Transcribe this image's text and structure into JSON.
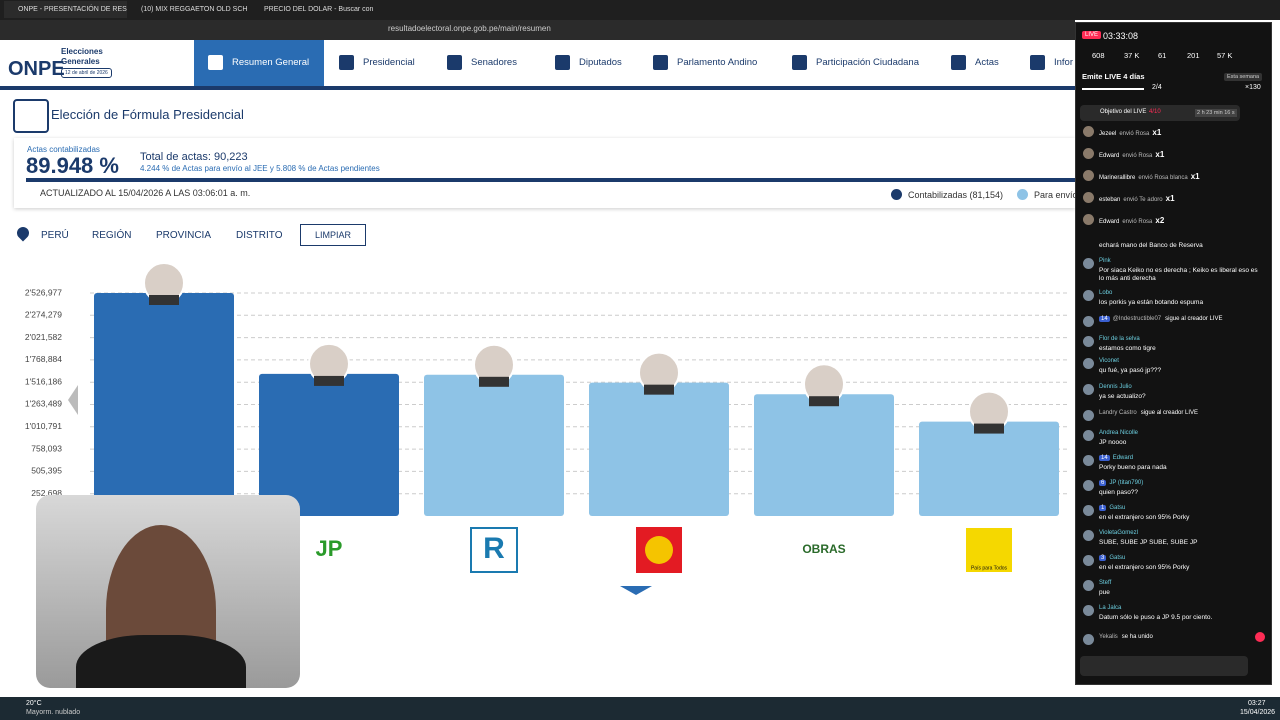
{
  "browser": {
    "tabs": [
      "ONPE - PRESENTACIÓN DE RES",
      "(10) MIX REGGAETON OLD SCH",
      "PRECIO DEL DOLAR - Buscar con Go"
    ],
    "url": "resultadoelectoral.onpe.gob.pe/main/resumen"
  },
  "header": {
    "logo": "ONPE",
    "brand": "Elecciones Generales",
    "date": "12 de abril de 2026",
    "nav": [
      "Resumen General",
      "Presidencial",
      "Senadores",
      "Diputados",
      "Parlamento Andino",
      "Participación Ciudadana",
      "Actas",
      "Infor"
    ]
  },
  "summary": {
    "title": "Elección de Fórmula Presidencial",
    "actas_label": "Actas contabilizadas",
    "percent": "89.948 %",
    "total": "Total de actas: 90,223",
    "note": "4.244 % de Actas para envío al JEE y 5.808 % de Actas pendientes",
    "updated": "ACTUALIZADO AL 15/04/2026 A LAS 03:06:01 a. m.",
    "legend": [
      "Contabilizadas (81,154)",
      "Para envío"
    ]
  },
  "filters": {
    "items": [
      "PERÚ",
      "REGIÓN",
      "PROVINCIA",
      "DISTRITO"
    ],
    "button": "LIMPIAR"
  },
  "chart_data": {
    "type": "bar",
    "values": [
      2526977,
      1610000,
      1600000,
      1511000,
      1380000,
      1070000
    ],
    "colors": [
      "#2a6cb3",
      "#2a6cb3",
      "#8ec3e6",
      "#8ec3e6",
      "#8ec3e6",
      "#8ec3e6"
    ],
    "party_logos": [
      "JP",
      "R",
      "OBRAS",
      "País para Todos"
    ],
    "ylim": [
      0,
      2526977
    ],
    "yticks": [
      {
        "value": 252698,
        "label": "252,698"
      },
      {
        "value": 505395,
        "label": "505,395"
      },
      {
        "value": 758093,
        "label": "758,093"
      },
      {
        "value": 1010791,
        "label": "1'010,791"
      },
      {
        "value": 1263489,
        "label": "1'263,489"
      },
      {
        "value": 1516186,
        "label": "1'516,186"
      },
      {
        "value": 1768884,
        "label": "1'768,884"
      },
      {
        "value": 2021582,
        "label": "2'021,582"
      },
      {
        "value": 2274279,
        "label": "2'274,279"
      },
      {
        "value": 2526977,
        "label": "2'526,977"
      }
    ],
    "grid": true
  },
  "live": {
    "badge": "LIVE",
    "time": "03:33:08",
    "stats": [
      "608",
      "37 K",
      "61",
      "201",
      "57 K"
    ],
    "streak": "Emite LIVE 4 días",
    "progress": "2/4",
    "week": "Esta semana",
    "coins": "×130",
    "goal": "Objetivo del LIVE",
    "goal_progress": "4/10",
    "goal_time": "2 h 23 min 16 s",
    "gifts": [
      {
        "user": "Jezeel",
        "text": "envió Rosa",
        "count": "x1"
      },
      {
        "user": "Edward",
        "text": "envió Rosa",
        "count": "x1"
      },
      {
        "user": "Marinerallibre",
        "text": "envió Rosa blanca",
        "count": "x1"
      },
      {
        "user": "esteban",
        "text": "envió Te adoro",
        "count": "x1"
      },
      {
        "user": "Edward",
        "text": "envió Rosa",
        "count": "x2"
      }
    ],
    "messages": [
      {
        "text": "echará mano del Banco de Reserva"
      },
      {
        "user": "Pink",
        "text": "Por siaca Keiko no es derecha ; Keiko es liberal eso es lo más anti derecha"
      },
      {
        "user": "Lobo",
        "text": "los porkis ya están botando espuma"
      },
      {
        "user": "@Indestructible07",
        "badge": "14",
        "inline": "sigue al creador LIVE"
      },
      {
        "user": "Flor de la selva",
        "text": "estamos como tigre"
      },
      {
        "user": "Viconet",
        "text": "qu fué, ya pasó jp???"
      },
      {
        "user": "Dennis Julio",
        "text": "ya se actualizo?"
      },
      {
        "user": "Landry Castro",
        "inline": "sigue al creador LIVE"
      },
      {
        "user": "Andrea Nicolle",
        "text": "JP noooo"
      },
      {
        "user": "Edward",
        "badge": "14",
        "text": "Porky bueno para nada"
      },
      {
        "user": "JP (titan790)",
        "badge": "6",
        "text": "quien paso??"
      },
      {
        "user": "Gatsu",
        "badge": "1",
        "text": "en el extranjero son 95% Porky"
      },
      {
        "user": "VioletaGomezl",
        "text": "SUBE, SUBE JP SUBE, SUBE JP"
      },
      {
        "user": "Gatsu",
        "badge": "3",
        "text": "en el extranjero son 95% Porky"
      },
      {
        "user": "Steff",
        "text": "pue"
      },
      {
        "user": "La Jalca",
        "text": "Datum sólo le puso a JP 9.5 por ciento."
      },
      {
        "user": "Yekalis",
        "inline": "se ha unido"
      }
    ]
  },
  "taskbar": {
    "temp": "20°C",
    "weather": "Mayorm. nublado",
    "clock": "03:27",
    "date": "15/04/2026"
  }
}
